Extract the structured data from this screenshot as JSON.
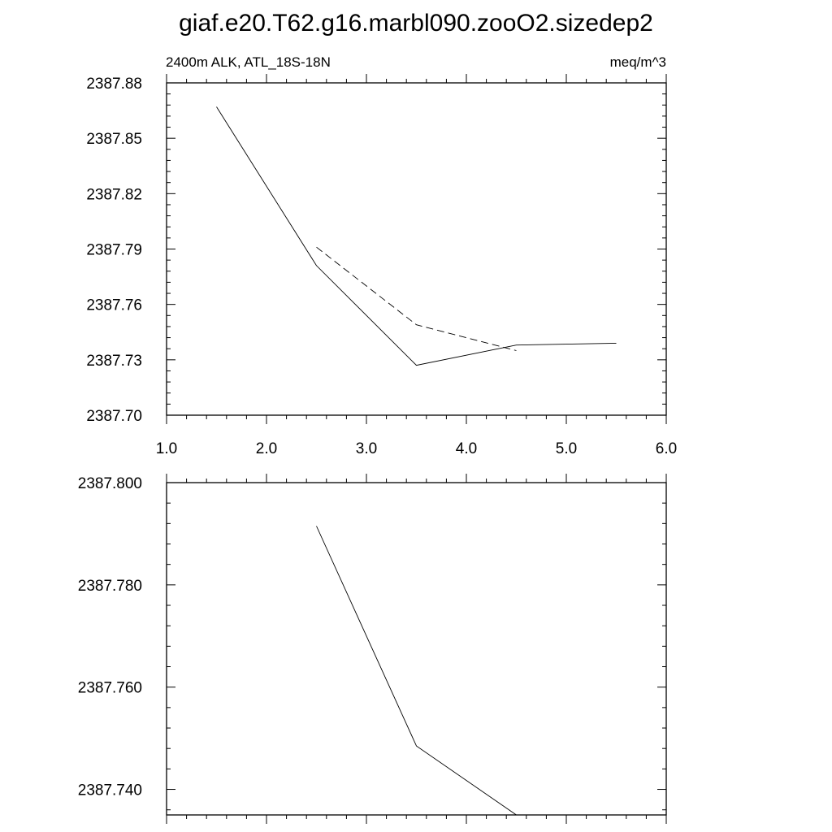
{
  "title": "giaf.e20.T62.g16.marbl090.zooO2.sizedep2",
  "chart_data": [
    {
      "type": "line",
      "left_label": "2400m ALK, ATL_18S-18N",
      "right_label": "meq/m^3",
      "xlim": [
        1.0,
        6.0
      ],
      "ylim": [
        2387.7,
        2387.88
      ],
      "x_ticks": [
        1.0,
        2.0,
        3.0,
        4.0,
        5.0,
        6.0
      ],
      "x_tick_labels": [
        "1.0",
        "2.0",
        "3.0",
        "4.0",
        "5.0",
        "6.0"
      ],
      "y_ticks": [
        2387.7,
        2387.73,
        2387.76,
        2387.79,
        2387.82,
        2387.85,
        2387.88
      ],
      "y_tick_labels": [
        "2387.70",
        "2387.73",
        "2387.76",
        "2387.79",
        "2387.82",
        "2387.85",
        "2387.88"
      ],
      "grid": false,
      "series": [
        {
          "style": "solid",
          "color": "#000000",
          "x": [
            1.5,
            2.5,
            3.5,
            4.5,
            5.5
          ],
          "y": [
            2387.867,
            2387.781,
            2387.727,
            2387.738,
            2387.739
          ]
        },
        {
          "style": "dashed",
          "color": "#000000",
          "x": [
            2.5,
            3.5,
            4.5
          ],
          "y": [
            2387.791,
            2387.749,
            2387.735
          ]
        }
      ]
    },
    {
      "type": "line",
      "xlim": [
        1.0,
        6.0
      ],
      "ylim": [
        2387.735,
        2387.8
      ],
      "x_ticks": [
        1.0,
        2.0,
        3.0,
        4.0,
        5.0,
        6.0
      ],
      "y_ticks": [
        2387.74,
        2387.76,
        2387.78,
        2387.8
      ],
      "y_tick_labels": [
        "2387.740",
        "2387.760",
        "2387.780",
        "2387.800"
      ],
      "grid": false,
      "series": [
        {
          "style": "solid",
          "color": "#000000",
          "x": [
            2.5,
            3.5,
            4.5
          ],
          "y": [
            2387.7915,
            2387.7485,
            2387.735
          ]
        }
      ]
    }
  ]
}
